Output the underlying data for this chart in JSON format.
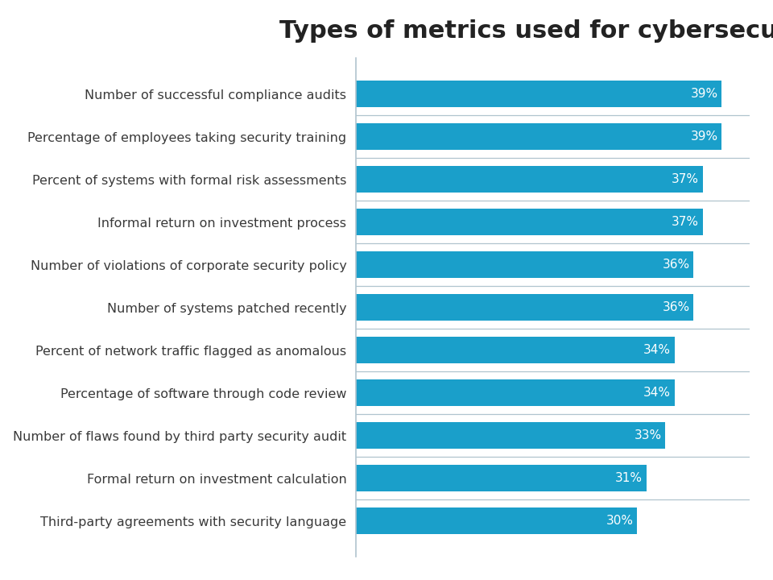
{
  "title": "Types of metrics used for cybersecurity",
  "categories": [
    "Third-party agreements with security language",
    "Formal return on investment calculation",
    "Number of flaws found by third party security audit",
    "Percentage of software through code review",
    "Percent of network traffic flagged as anomalous",
    "Number of systems patched recently",
    "Number of violations of corporate security policy",
    "Informal return on investment process",
    "Percent of systems with formal risk assessments",
    "Percentage of employees taking security training",
    "Number of successful compliance audits"
  ],
  "values": [
    30,
    31,
    33,
    34,
    34,
    36,
    36,
    37,
    37,
    39,
    39
  ],
  "bar_color": "#1A9FCA",
  "label_color": "#ffffff",
  "text_color": "#3a3a3a",
  "title_fontsize": 22,
  "label_fontsize": 11.5,
  "value_fontsize": 11,
  "background_color": "#ffffff",
  "separator_color": "#b0c4ce",
  "xlim": [
    0,
    42
  ]
}
